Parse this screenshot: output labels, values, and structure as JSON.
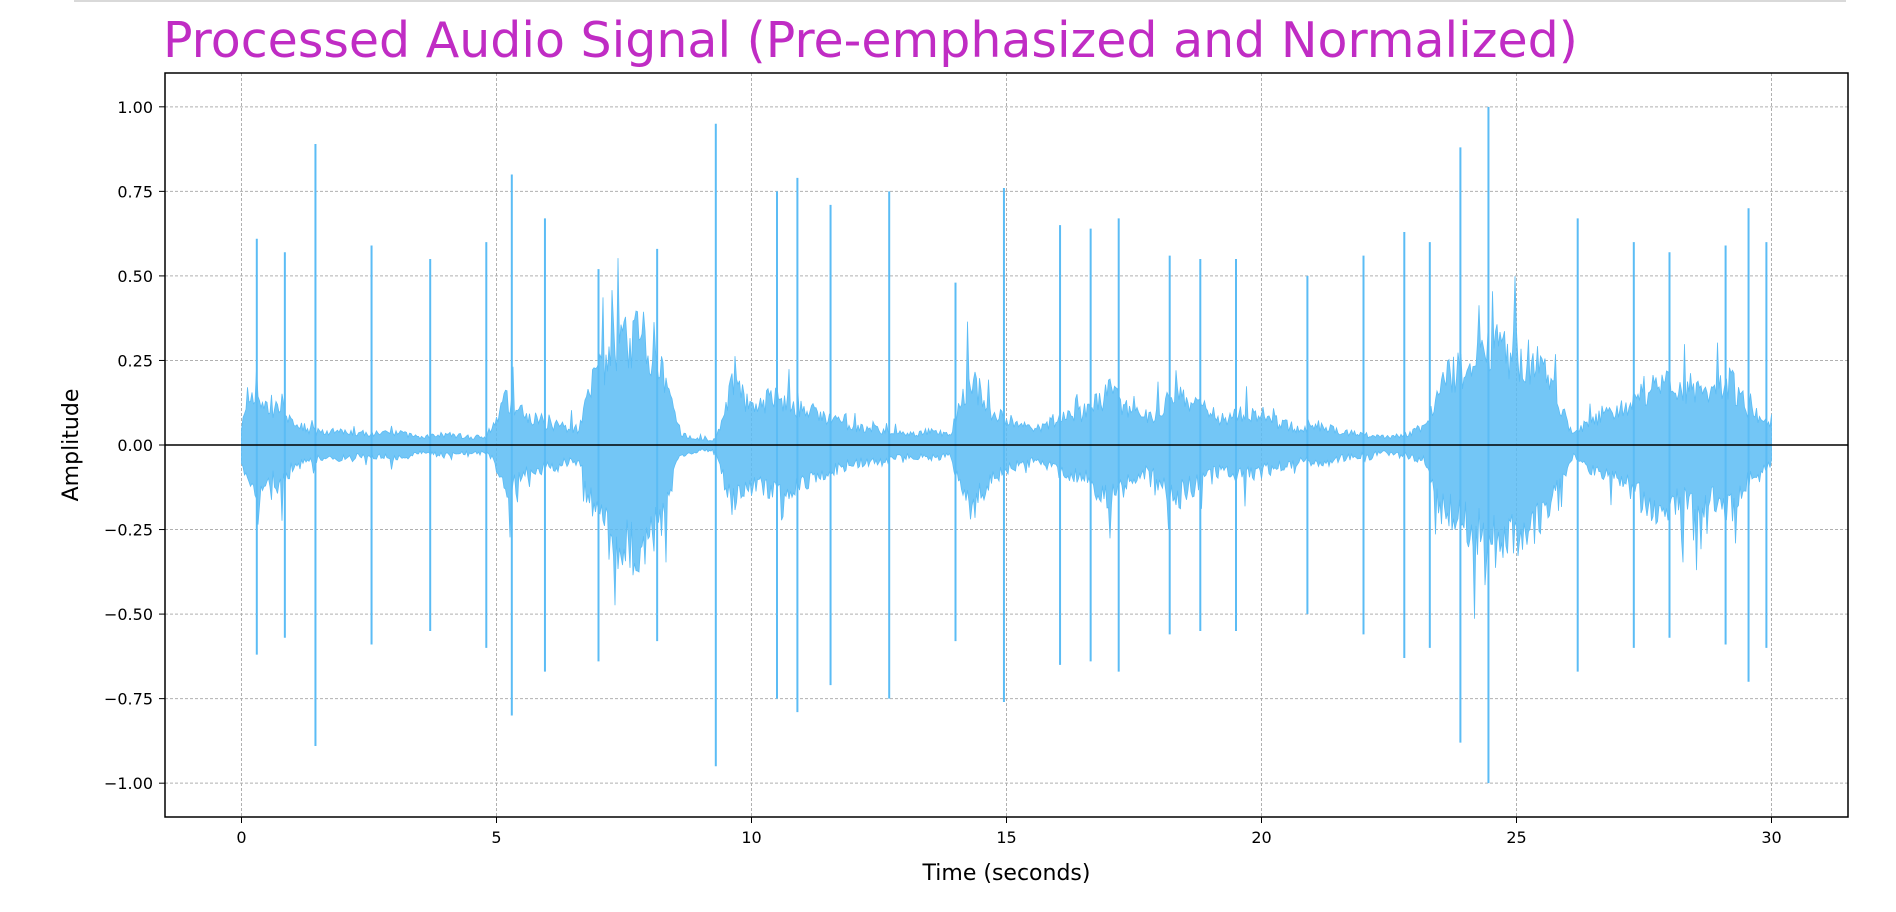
{
  "chart_data": {
    "type": "line",
    "title": "Processed Audio Signal (Pre-emphasized and Normalized)",
    "xlabel": "Time (seconds)",
    "ylabel": "Amplitude",
    "xlim": [
      -1.5,
      31.5
    ],
    "ylim": [
      -1.1,
      1.1
    ],
    "xticks": [
      0,
      5,
      10,
      15,
      20,
      25,
      30
    ],
    "xtick_labels": [
      "0",
      "5",
      "10",
      "15",
      "20",
      "25",
      "30"
    ],
    "yticks": [
      1.0,
      0.75,
      0.5,
      0.25,
      0.0,
      -0.25,
      -0.5,
      -0.75,
      -1.0
    ],
    "ytick_labels": [
      "1.00",
      "0.75",
      "0.50",
      "0.25",
      "0.00",
      "−0.25",
      "−0.50",
      "−0.75",
      "−1.00"
    ],
    "grid": true,
    "zero_line": true,
    "series": [
      {
        "color": "#5bbcf5",
        "envelope_time": [
          0,
          0.3,
          0.6,
          0.8,
          1.0,
          1.5,
          2.0,
          2.5,
          3.0,
          3.5,
          4.0,
          4.5,
          4.85,
          5.2,
          5.5,
          6.0,
          6.6,
          6.9,
          7.3,
          7.8,
          8.2,
          8.6,
          9.0,
          9.3,
          9.6,
          10.0,
          10.5,
          11.0,
          11.5,
          12.0,
          12.5,
          13.0,
          13.5,
          13.9,
          14.3,
          14.7,
          15.2,
          15.6,
          16.0,
          16.5,
          17.0,
          17.4,
          17.8,
          18.3,
          18.8,
          19.2,
          19.6,
          20.0,
          20.4,
          20.8,
          21.2,
          21.6,
          22.0,
          22.4,
          22.8,
          23.2,
          23.5,
          23.9,
          24.3,
          24.6,
          25.0,
          25.4,
          25.8,
          26.1,
          26.5,
          27.0,
          27.4,
          27.8,
          28.3,
          28.8,
          29.2,
          29.6,
          30.0
        ],
        "envelope_amplitude": [
          0.08,
          0.2,
          0.12,
          0.16,
          0.08,
          0.05,
          0.05,
          0.04,
          0.05,
          0.03,
          0.04,
          0.03,
          0.03,
          0.18,
          0.12,
          0.08,
          0.06,
          0.24,
          0.38,
          0.4,
          0.3,
          0.04,
          0.02,
          0.02,
          0.22,
          0.15,
          0.18,
          0.14,
          0.1,
          0.07,
          0.06,
          0.04,
          0.05,
          0.04,
          0.26,
          0.12,
          0.08,
          0.06,
          0.1,
          0.12,
          0.2,
          0.14,
          0.1,
          0.2,
          0.14,
          0.1,
          0.12,
          0.1,
          0.08,
          0.06,
          0.07,
          0.05,
          0.04,
          0.03,
          0.04,
          0.06,
          0.24,
          0.28,
          0.34,
          0.36,
          0.34,
          0.3,
          0.18,
          0.04,
          0.1,
          0.12,
          0.2,
          0.24,
          0.22,
          0.22,
          0.24,
          0.12,
          0.06
        ],
        "spikes": [
          [
            0.3,
            0.61,
            -0.62
          ],
          [
            0.85,
            0.57,
            -0.57
          ],
          [
            1.45,
            0.89,
            -0.89
          ],
          [
            2.55,
            0.59,
            -0.59
          ],
          [
            3.7,
            0.55,
            -0.55
          ],
          [
            4.8,
            0.6,
            -0.6
          ],
          [
            5.3,
            0.8,
            -0.8
          ],
          [
            5.95,
            0.67,
            -0.67
          ],
          [
            7.0,
            0.52,
            -0.64
          ],
          [
            8.15,
            0.58,
            -0.58
          ],
          [
            9.3,
            0.95,
            -0.95
          ],
          [
            10.5,
            0.75,
            -0.75
          ],
          [
            10.9,
            0.79,
            -0.79
          ],
          [
            11.55,
            0.71,
            -0.71
          ],
          [
            12.7,
            0.75,
            -0.75
          ],
          [
            14.0,
            0.48,
            -0.58
          ],
          [
            14.95,
            0.76,
            -0.76
          ],
          [
            16.05,
            0.65,
            -0.65
          ],
          [
            16.65,
            0.64,
            -0.64
          ],
          [
            17.2,
            0.67,
            -0.67
          ],
          [
            18.2,
            0.56,
            -0.56
          ],
          [
            18.8,
            0.55,
            -0.55
          ],
          [
            19.5,
            0.55,
            -0.55
          ],
          [
            20.9,
            0.5,
            -0.5
          ],
          [
            22.0,
            0.56,
            -0.56
          ],
          [
            22.8,
            0.63,
            -0.63
          ],
          [
            23.3,
            0.6,
            -0.6
          ],
          [
            23.9,
            0.88,
            -0.88
          ],
          [
            24.45,
            1.0,
            -1.0
          ],
          [
            26.2,
            0.67,
            -0.67
          ],
          [
            27.3,
            0.6,
            -0.6
          ],
          [
            28.0,
            0.57,
            -0.57
          ],
          [
            29.1,
            0.59,
            -0.59
          ],
          [
            29.55,
            0.7,
            -0.7
          ],
          [
            29.9,
            0.6,
            -0.6
          ]
        ]
      }
    ]
  }
}
